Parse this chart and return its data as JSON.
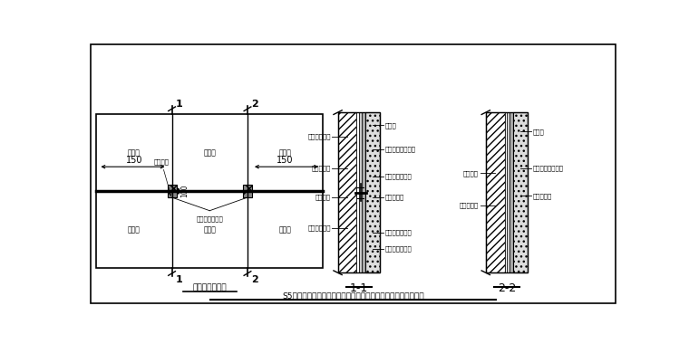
{
  "title": "S5工程精装修大堂墙面湿贴工艺硬化砖湿贴局部加强做法示意图",
  "subtitle_left": "墙砖立面示意图",
  "subtitle_11": "1-1",
  "subtitle_22": "2-2",
  "tile_label": "硬化砖",
  "dim_150": "150",
  "dim_100": "100",
  "labels_11_left": [
    "结构墙体基层",
    "墙体抹灰层",
    "射钉固定",
    "不锈钢挂接件"
  ],
  "labels_11_right": [
    "硬化砖",
    "硬化砖强力粘结剂",
    "云石胶快速固定",
    "填缝剂填缝",
    "硬化砖背面开槽",
    "采用云石胶固定"
  ],
  "labels_22_left": [
    "墙体基层",
    "墙体抹灰层"
  ],
  "labels_22_right": [
    "硬化砖",
    "硬化砖强力粘结剂",
    "填缝剂填缝"
  ],
  "label_inside_left": [
    "射钉固定",
    "不锈钢挂墙挂件"
  ]
}
